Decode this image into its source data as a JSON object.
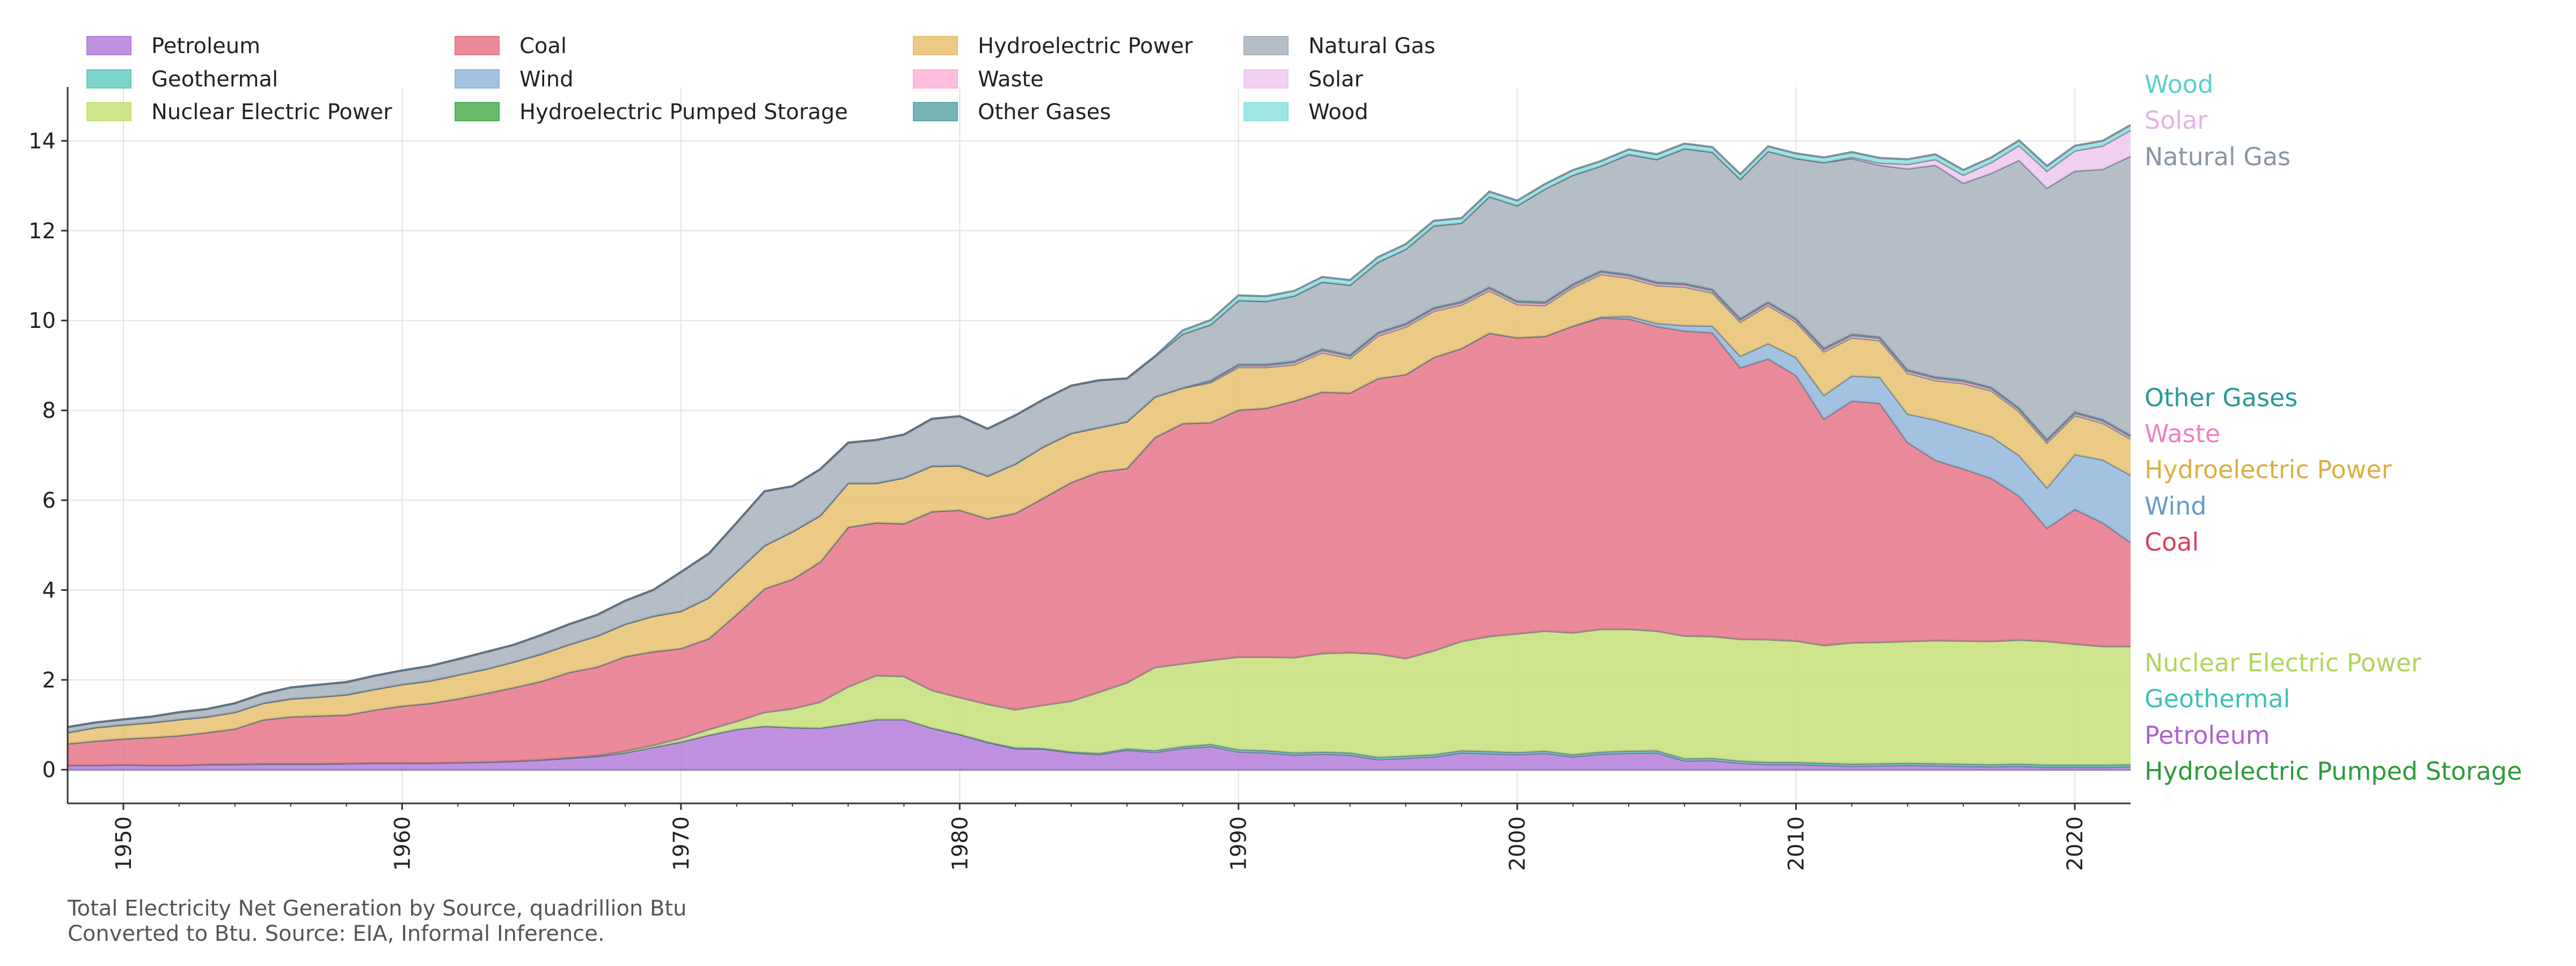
{
  "chart_data": {
    "type": "area",
    "stacked": true,
    "caption_line1": "Total Electricity Net Generation by Source, quadrillion Btu",
    "caption_line2": "Converted to Btu. Source: EIA, Informal Inference.",
    "xlabel": "",
    "ylabel": "",
    "xlim": [
      1948,
      2022
    ],
    "ylim": [
      -0.75,
      15.2
    ],
    "x_ticks": [
      1950,
      1960,
      1970,
      1980,
      1990,
      2000,
      2010,
      2020
    ],
    "y_ticks": [
      0,
      2,
      4,
      6,
      8,
      10,
      12,
      14
    ],
    "grid": true,
    "legend_position": "top-left",
    "years": [
      1948,
      1949,
      1950,
      1951,
      1952,
      1953,
      1954,
      1955,
      1956,
      1957,
      1958,
      1959,
      1960,
      1961,
      1962,
      1963,
      1964,
      1965,
      1966,
      1967,
      1968,
      1969,
      1970,
      1971,
      1972,
      1973,
      1974,
      1975,
      1976,
      1977,
      1978,
      1979,
      1980,
      1981,
      1982,
      1983,
      1984,
      1985,
      1986,
      1987,
      1988,
      1989,
      1990,
      1991,
      1992,
      1993,
      1994,
      1995,
      1996,
      1997,
      1998,
      1999,
      2000,
      2001,
      2002,
      2003,
      2004,
      2005,
      2006,
      2007,
      2008,
      2009,
      2010,
      2011,
      2012,
      2013,
      2014,
      2015,
      2016,
      2017,
      2018,
      2019,
      2020,
      2021,
      2022
    ],
    "series": [
      {
        "name": "Hydroelectric Pumped Storage",
        "color": "#4caf50",
        "values": [
          0,
          0,
          0,
          0,
          0,
          0,
          0,
          0,
          0,
          0,
          0,
          0,
          0,
          0,
          0,
          0,
          0,
          0,
          0,
          0,
          0,
          0,
          0,
          0,
          0,
          0,
          0,
          0,
          0,
          0,
          0,
          0,
          0,
          0,
          0,
          0,
          0,
          0,
          0,
          0,
          0,
          0,
          0,
          0,
          0,
          0,
          0,
          0,
          0,
          0,
          0,
          0,
          0,
          0,
          0,
          0,
          0,
          0,
          0,
          0,
          0,
          0,
          0,
          0,
          0,
          0,
          0,
          0,
          0,
          0,
          0,
          0,
          0,
          0,
          0
        ]
      },
      {
        "name": "Petroleum",
        "color": "#b57edc",
        "values": [
          0.1,
          0.1,
          0.11,
          0.1,
          0.1,
          0.12,
          0.12,
          0.13,
          0.13,
          0.13,
          0.14,
          0.15,
          0.15,
          0.15,
          0.16,
          0.17,
          0.19,
          0.22,
          0.26,
          0.3,
          0.38,
          0.5,
          0.62,
          0.77,
          0.9,
          0.97,
          0.94,
          0.93,
          1.02,
          1.12,
          1.12,
          0.93,
          0.78,
          0.61,
          0.47,
          0.46,
          0.38,
          0.34,
          0.44,
          0.39,
          0.48,
          0.52,
          0.4,
          0.38,
          0.33,
          0.35,
          0.33,
          0.23,
          0.26,
          0.29,
          0.38,
          0.36,
          0.34,
          0.37,
          0.29,
          0.35,
          0.37,
          0.38,
          0.2,
          0.21,
          0.15,
          0.12,
          0.12,
          0.1,
          0.08,
          0.09,
          0.1,
          0.09,
          0.08,
          0.07,
          0.08,
          0.06,
          0.06,
          0.06,
          0.07
        ]
      },
      {
        "name": "Geothermal",
        "color": "#66ccc0",
        "values": [
          0,
          0,
          0,
          0,
          0,
          0,
          0,
          0,
          0,
          0,
          0,
          0,
          0,
          0,
          0,
          0,
          0,
          0,
          0,
          0,
          0,
          0,
          0,
          0,
          0,
          0,
          0,
          0,
          0,
          0,
          0,
          0,
          0.01,
          0.01,
          0.02,
          0.02,
          0.02,
          0.03,
          0.03,
          0.04,
          0.04,
          0.05,
          0.05,
          0.05,
          0.05,
          0.05,
          0.05,
          0.05,
          0.05,
          0.05,
          0.05,
          0.05,
          0.05,
          0.05,
          0.05,
          0.05,
          0.05,
          0.05,
          0.05,
          0.05,
          0.05,
          0.05,
          0.05,
          0.05,
          0.05,
          0.05,
          0.05,
          0.05,
          0.05,
          0.05,
          0.05,
          0.05,
          0.05,
          0.05,
          0.05
        ]
      },
      {
        "name": "Nuclear Electric Power",
        "color": "#c5e17a",
        "values": [
          0,
          0,
          0,
          0,
          0,
          0,
          0,
          0,
          0,
          0,
          0,
          0,
          0,
          0,
          0,
          0,
          0,
          0,
          0.01,
          0.02,
          0.04,
          0.05,
          0.08,
          0.13,
          0.18,
          0.31,
          0.42,
          0.58,
          0.83,
          0.98,
          0.96,
          0.84,
          0.82,
          0.84,
          0.85,
          0.96,
          1.13,
          1.36,
          1.47,
          1.85,
          1.84,
          1.87,
          2.06,
          2.08,
          2.12,
          2.19,
          2.23,
          2.3,
          2.17,
          2.31,
          2.43,
          2.56,
          2.64,
          2.67,
          2.71,
          2.73,
          2.71,
          2.66,
          2.73,
          2.71,
          2.71,
          2.73,
          2.7,
          2.62,
          2.7,
          2.7,
          2.71,
          2.74,
          2.74,
          2.74,
          2.76,
          2.75,
          2.69,
          2.64,
          2.63
        ]
      },
      {
        "name": "Coal",
        "color": "#e8768a",
        "values": [
          0.48,
          0.54,
          0.58,
          0.62,
          0.66,
          0.71,
          0.79,
          0.98,
          1.05,
          1.07,
          1.08,
          1.18,
          1.27,
          1.33,
          1.42,
          1.53,
          1.64,
          1.75,
          1.9,
          1.97,
          2.1,
          2.08,
          2.0,
          2.02,
          2.38,
          2.75,
          2.88,
          3.12,
          3.55,
          3.4,
          3.4,
          3.98,
          4.17,
          4.13,
          4.37,
          4.61,
          4.87,
          4.9,
          4.77,
          5.12,
          5.35,
          5.29,
          5.5,
          5.54,
          5.71,
          5.82,
          5.78,
          6.13,
          6.32,
          6.53,
          6.52,
          6.75,
          6.59,
          6.56,
          6.83,
          6.93,
          6.91,
          6.78,
          6.79,
          6.76,
          6.04,
          6.25,
          5.91,
          5.04,
          5.38,
          5.32,
          4.43,
          4.01,
          3.83,
          3.63,
          3.21,
          2.52,
          3.0,
          2.75,
          2.31
        ]
      },
      {
        "name": "Wind",
        "color": "#93b7dc",
        "values": [
          0,
          0,
          0,
          0,
          0,
          0,
          0,
          0,
          0,
          0,
          0,
          0,
          0,
          0,
          0,
          0,
          0,
          0,
          0,
          0,
          0,
          0,
          0,
          0,
          0,
          0,
          0,
          0,
          0,
          0,
          0,
          0,
          0,
          0,
          0,
          0,
          0,
          0,
          0,
          0,
          0,
          0,
          0,
          0,
          0,
          0,
          0,
          0,
          0,
          0,
          0,
          0,
          0,
          0,
          0,
          0.02,
          0.06,
          0.07,
          0.12,
          0.15,
          0.26,
          0.34,
          0.4,
          0.53,
          0.56,
          0.58,
          0.63,
          0.9,
          0.91,
          0.93,
          0.9,
          0.9,
          1.22,
          1.4,
          1.5
        ]
      },
      {
        "name": "Hydroelectric Power",
        "color": "#e8c170",
        "values": [
          0.25,
          0.3,
          0.31,
          0.33,
          0.36,
          0.35,
          0.37,
          0.37,
          0.4,
          0.42,
          0.45,
          0.46,
          0.48,
          0.5,
          0.53,
          0.54,
          0.57,
          0.61,
          0.62,
          0.69,
          0.72,
          0.79,
          0.83,
          0.91,
          0.95,
          0.96,
          1.06,
          1.03,
          0.98,
          0.88,
          1.02,
          1.01,
          0.99,
          0.95,
          1.1,
          1.14,
          1.09,
          0.99,
          1.04,
          0.9,
          0.79,
          0.89,
          0.95,
          0.91,
          0.81,
          0.88,
          0.77,
          0.95,
          1.06,
          1.03,
          0.97,
          0.95,
          0.74,
          0.69,
          0.86,
          0.95,
          0.85,
          0.84,
          0.86,
          0.74,
          0.76,
          0.85,
          0.79,
          0.97,
          0.85,
          0.82,
          0.91,
          0.88,
          0.99,
          1.02,
          0.98,
          1.0,
          0.87,
          0.82,
          0.81
        ]
      },
      {
        "name": "Waste",
        "color": "#ffb3d9",
        "values": [
          0,
          0,
          0,
          0,
          0,
          0,
          0,
          0,
          0,
          0,
          0,
          0,
          0,
          0,
          0,
          0,
          0,
          0,
          0,
          0,
          0,
          0,
          0,
          0,
          0,
          0,
          0,
          0,
          0,
          0,
          0,
          0,
          0,
          0,
          0,
          0,
          0,
          0,
          0,
          0,
          0,
          0.03,
          0.04,
          0.04,
          0.05,
          0.05,
          0.05,
          0.05,
          0.05,
          0.05,
          0.05,
          0.05,
          0.05,
          0.05,
          0.05,
          0.05,
          0.05,
          0.05,
          0.05,
          0.05,
          0.05,
          0.05,
          0.05,
          0.05,
          0.05,
          0.05,
          0.05,
          0.05,
          0.05,
          0.05,
          0.05,
          0.05,
          0.05,
          0.05,
          0.05
        ]
      },
      {
        "name": "Other Gases",
        "color": "#5fa8a8",
        "values": [
          0,
          0,
          0,
          0,
          0,
          0,
          0,
          0,
          0,
          0,
          0,
          0,
          0,
          0,
          0,
          0,
          0,
          0,
          0,
          0,
          0,
          0,
          0,
          0,
          0,
          0,
          0,
          0,
          0,
          0,
          0,
          0,
          0,
          0,
          0,
          0,
          0,
          0,
          0,
          0,
          0,
          0.02,
          0.03,
          0.03,
          0.03,
          0.03,
          0.03,
          0.03,
          0.03,
          0.03,
          0.03,
          0.03,
          0.03,
          0.03,
          0.03,
          0.03,
          0.03,
          0.03,
          0.03,
          0.03,
          0.03,
          0.03,
          0.03,
          0.03,
          0.03,
          0.03,
          0.03,
          0.03,
          0.03,
          0.03,
          0.03,
          0.03,
          0.03,
          0.03,
          0.03
        ]
      },
      {
        "name": "Natural Gas",
        "color": "#a8b1bd",
        "values": [
          0.12,
          0.11,
          0.12,
          0.13,
          0.16,
          0.17,
          0.2,
          0.21,
          0.25,
          0.27,
          0.28,
          0.3,
          0.31,
          0.33,
          0.35,
          0.38,
          0.38,
          0.42,
          0.45,
          0.47,
          0.52,
          0.58,
          0.87,
          0.98,
          1.09,
          1.21,
          1.01,
          1.03,
          0.9,
          0.96,
          0.96,
          1.05,
          1.1,
          1.05,
          1.08,
          1.05,
          1.06,
          1.05,
          0.96,
          0.9,
          1.2,
          1.24,
          1.42,
          1.4,
          1.45,
          1.49,
          1.55,
          1.56,
          1.65,
          1.82,
          1.74,
          2.01,
          2.12,
          2.51,
          2.42,
          2.33,
          2.67,
          2.73,
          3.0,
          3.05,
          3.1,
          3.35,
          3.56,
          4.13,
          3.91,
          3.82,
          4.47,
          4.71,
          4.38,
          4.76,
          5.51,
          5.59,
          5.36,
          5.57,
          6.21
        ]
      },
      {
        "name": "Solar",
        "color": "#f0c8f0",
        "values": [
          0,
          0,
          0,
          0,
          0,
          0,
          0,
          0,
          0,
          0,
          0,
          0,
          0,
          0,
          0,
          0,
          0,
          0,
          0,
          0,
          0,
          0,
          0,
          0,
          0,
          0,
          0,
          0,
          0,
          0,
          0,
          0,
          0,
          0,
          0,
          0,
          0,
          0,
          0,
          0,
          0,
          0,
          0,
          0,
          0,
          0,
          0,
          0,
          0,
          0,
          0,
          0,
          0,
          0,
          0,
          0,
          0,
          0,
          0,
          0,
          0,
          0,
          0,
          0,
          0.03,
          0.05,
          0.1,
          0.13,
          0.18,
          0.24,
          0.33,
          0.38,
          0.45,
          0.52,
          0.58
        ]
      },
      {
        "name": "Wood",
        "color": "#8fe0e0",
        "values": [
          0,
          0,
          0,
          0,
          0,
          0,
          0,
          0,
          0,
          0,
          0,
          0,
          0,
          0,
          0,
          0,
          0,
          0,
          0,
          0,
          0,
          0,
          0,
          0,
          0,
          0,
          0,
          0,
          0,
          0,
          0,
          0,
          0,
          0,
          0,
          0,
          0,
          0,
          0,
          0,
          0.08,
          0.1,
          0.11,
          0.11,
          0.11,
          0.11,
          0.11,
          0.11,
          0.11,
          0.11,
          0.11,
          0.11,
          0.11,
          0.11,
          0.11,
          0.11,
          0.11,
          0.11,
          0.11,
          0.11,
          0.11,
          0.11,
          0.11,
          0.11,
          0.11,
          0.11,
          0.11,
          0.11,
          0.11,
          0.11,
          0.11,
          0.11,
          0.11,
          0.11,
          0.11
        ]
      }
    ],
    "legend_entries": [
      {
        "label": "Petroleum",
        "color": "#b57edc"
      },
      {
        "label": "Geothermal",
        "color": "#66ccc0"
      },
      {
        "label": "Nuclear Electric Power",
        "color": "#c5e17a"
      },
      {
        "label": "Coal",
        "color": "#e8768a"
      },
      {
        "label": "Wind",
        "color": "#93b7dc"
      },
      {
        "label": "Hydroelectric Pumped Storage",
        "color": "#4caf50"
      },
      {
        "label": "Hydroelectric Power",
        "color": "#e8c170"
      },
      {
        "label": "Waste",
        "color": "#ffb3d9"
      },
      {
        "label": "Other Gases",
        "color": "#5fa8a8"
      },
      {
        "label": "Natural Gas",
        "color": "#a8b1bd"
      },
      {
        "label": "Solar",
        "color": "#f0c8f0"
      },
      {
        "label": "Wood",
        "color": "#8fe0e0"
      }
    ],
    "end_labels": [
      {
        "label": "Wood",
        "color": "#5ad0d0"
      },
      {
        "label": "Solar",
        "color": "#e6b3e6"
      },
      {
        "label": "Natural Gas",
        "color": "#8a95a5"
      },
      {
        "label": "Other Gases",
        "color": "#2a9a96"
      },
      {
        "label": "Waste",
        "color": "#f080c0"
      },
      {
        "label": "Hydroelectric Power",
        "color": "#dcb040"
      },
      {
        "label": "Wind",
        "color": "#6a9ac8"
      },
      {
        "label": "Coal",
        "color": "#d84060"
      },
      {
        "label": "Nuclear Electric Power",
        "color": "#aed65c"
      },
      {
        "label": "Geothermal",
        "color": "#40c0b8"
      },
      {
        "label": "Petroleum",
        "color": "#b060d0"
      },
      {
        "label": "Hydroelectric Pumped Storage",
        "color": "#2e9a3a"
      }
    ]
  }
}
